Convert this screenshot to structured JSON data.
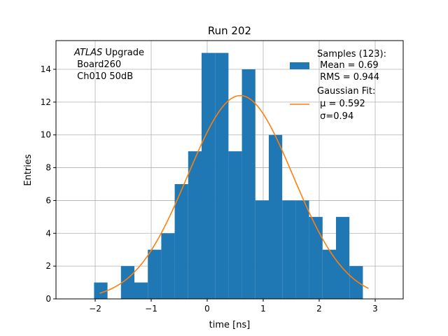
{
  "chart_data": {
    "type": "bar",
    "title": "Run 202",
    "xlabel": "time [ns]",
    "ylabel": "Entries",
    "xlim": [
      -2.7,
      3.5
    ],
    "ylim": [
      0,
      15.75
    ],
    "xticks": [
      -2,
      -1,
      0,
      1,
      2,
      3
    ],
    "xtick_labels": [
      "−2",
      "−1",
      "0",
      "1",
      "2",
      "3"
    ],
    "yticks": [
      0,
      2,
      4,
      6,
      8,
      10,
      12,
      14
    ],
    "yticks_labels": [
      "0",
      "2",
      "4",
      "6",
      "8",
      "10",
      "12",
      "14"
    ],
    "grid": true,
    "bin_width": 0.24,
    "bin_starts": [
      -2.5,
      -2.26,
      -2.02,
      -1.78,
      -1.54,
      -1.3,
      -1.06,
      -0.82,
      -0.58,
      -0.34,
      -0.1,
      0.14,
      0.38,
      0.62,
      0.86,
      1.1,
      1.34,
      1.58,
      1.82,
      2.06,
      2.3,
      2.54,
      2.78,
      3.02
    ],
    "counts": [
      0,
      0,
      1,
      0,
      2,
      1,
      3,
      4,
      7,
      9,
      15,
      15,
      9,
      14,
      6,
      10,
      6,
      6,
      5,
      3,
      5,
      2,
      0,
      0
    ],
    "bar_color": "#1f77b4",
    "fit": {
      "name": "Gaussian Fit",
      "mu": 0.592,
      "sigma": 0.94,
      "peak": 12.4,
      "x_range": [
        -1.92,
        2.88
      ],
      "color": "#ff7f0e"
    },
    "legend": {
      "placement": "top-right",
      "entries": [
        {
          "kind": "patch",
          "lines": [
            "Samples (123):",
            " Mean = 0.69",
            " RMS = 0.944"
          ]
        },
        {
          "kind": "line",
          "lines": [
            "Gaussian Fit:",
            " μ = 0.592",
            " σ=0.94"
          ]
        }
      ]
    },
    "annotation": [
      "ATLAS",
      " Upgrade",
      " Board260",
      " Ch010 50dB"
    ]
  }
}
